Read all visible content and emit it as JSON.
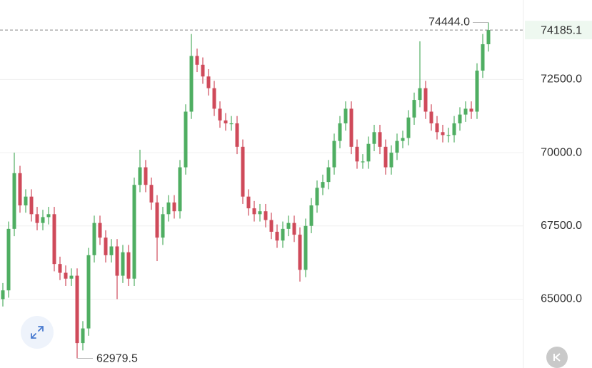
{
  "chart_data": {
    "type": "candlestick",
    "ylim": [
      62650,
      75210
    ],
    "yticks": [
      {
        "value": 65000,
        "label": "65000.0"
      },
      {
        "value": 67500,
        "label": "67500.0"
      },
      {
        "value": 70000,
        "label": "70000.0"
      },
      {
        "value": 72500,
        "label": "72500.0"
      }
    ],
    "grid": true,
    "up_color": "#4fae62",
    "down_color": "#cf4a5a",
    "max_label": "74444.0",
    "open": [
      65000,
      65300,
      67400,
      69300,
      68200,
      68500,
      67900,
      67600,
      67800,
      67900,
      66200,
      65900,
      65700,
      65800,
      63500,
      64000,
      66500,
      67600,
      67100,
      66500,
      66800,
      65800,
      66600,
      65700,
      68900,
      69500,
      68900,
      68300,
      67100,
      67900,
      68300,
      68000,
      69500,
      71400,
      73300,
      73000,
      72600,
      72200,
      71500,
      71100,
      71000,
      71000,
      70200,
      68500,
      68100,
      67900,
      68000,
      67700,
      67300,
      67000,
      67400,
      67600,
      67200,
      66000,
      67500,
      68200,
      68800,
      69000,
      69500,
      70400,
      71000,
      71500,
      70200,
      69700,
      69700,
      70300,
      70700,
      70200,
      69500,
      70000,
      70400,
      70500,
      71200,
      71800,
      72200,
      71400,
      71000,
      70700,
      70600,
      70600,
      71000,
      71300,
      71500,
      71400,
      72800,
      73700
    ],
    "high": [
      65550,
      67650,
      70000,
      69550,
      68750,
      68750,
      68150,
      68050,
      68150,
      68150,
      66450,
      66150,
      66050,
      66050,
      64250,
      66750,
      67850,
      67850,
      67350,
      67050,
      67050,
      66850,
      66850,
      69150,
      70100,
      69750,
      69150,
      68550,
      68150,
      68550,
      68550,
      69750,
      71650,
      74050,
      73550,
      73250,
      72850,
      72450,
      71750,
      71350,
      71250,
      71250,
      70450,
      68750,
      68350,
      68250,
      68250,
      67950,
      67550,
      67650,
      67850,
      67850,
      67450,
      67750,
      68450,
      69050,
      69250,
      69750,
      70650,
      71250,
      71750,
      71750,
      70450,
      69950,
      70550,
      70950,
      70950,
      70450,
      70250,
      70650,
      70750,
      71450,
      72050,
      73800,
      72450,
      71650,
      71250,
      70950,
      70850,
      71250,
      71550,
      71750,
      71750,
      73050,
      74050,
      74444
    ],
    "low": [
      64750,
      65050,
      67150,
      67950,
      67950,
      67650,
      67350,
      67350,
      67550,
      65950,
      65650,
      65450,
      65450,
      62979.5,
      63250,
      63750,
      66250,
      66850,
      66250,
      66250,
      65000,
      65550,
      65450,
      65450,
      68650,
      68650,
      68050,
      66300,
      66850,
      67650,
      67750,
      67750,
      69250,
      71150,
      72750,
      72350,
      71950,
      71250,
      70850,
      70750,
      70750,
      69950,
      68250,
      67850,
      67650,
      67650,
      67450,
      67050,
      66750,
      66750,
      67150,
      66950,
      65600,
      65750,
      67250,
      67950,
      68550,
      68750,
      69250,
      70150,
      70750,
      69950,
      69450,
      69450,
      69450,
      70050,
      69950,
      69250,
      69250,
      69750,
      70150,
      70250,
      70950,
      71550,
      71150,
      70750,
      70450,
      70350,
      70350,
      70350,
      70750,
      71050,
      71150,
      71150,
      72550,
      73450
    ],
    "close": [
      65300,
      67400,
      69300,
      68200,
      68500,
      67900,
      67600,
      67800,
      67900,
      66200,
      65900,
      65700,
      65800,
      63500,
      64000,
      66500,
      67600,
      67100,
      66500,
      66800,
      65800,
      66600,
      65700,
      68900,
      69500,
      68900,
      68300,
      67100,
      67900,
      68300,
      68000,
      69500,
      71400,
      73300,
      73000,
      72600,
      72200,
      71500,
      71100,
      71000,
      71000,
      70200,
      68500,
      68100,
      67900,
      68000,
      67700,
      67300,
      67000,
      67400,
      67600,
      67200,
      66000,
      67500,
      68200,
      68800,
      69000,
      69500,
      70400,
      71000,
      71500,
      70200,
      69700,
      69700,
      70300,
      70700,
      70200,
      69500,
      70000,
      70400,
      70500,
      71200,
      71800,
      72200,
      71400,
      71000,
      70700,
      70600,
      70600,
      71000,
      71300,
      71500,
      71400,
      72800,
      73700,
      74185.1
    ]
  }
}
